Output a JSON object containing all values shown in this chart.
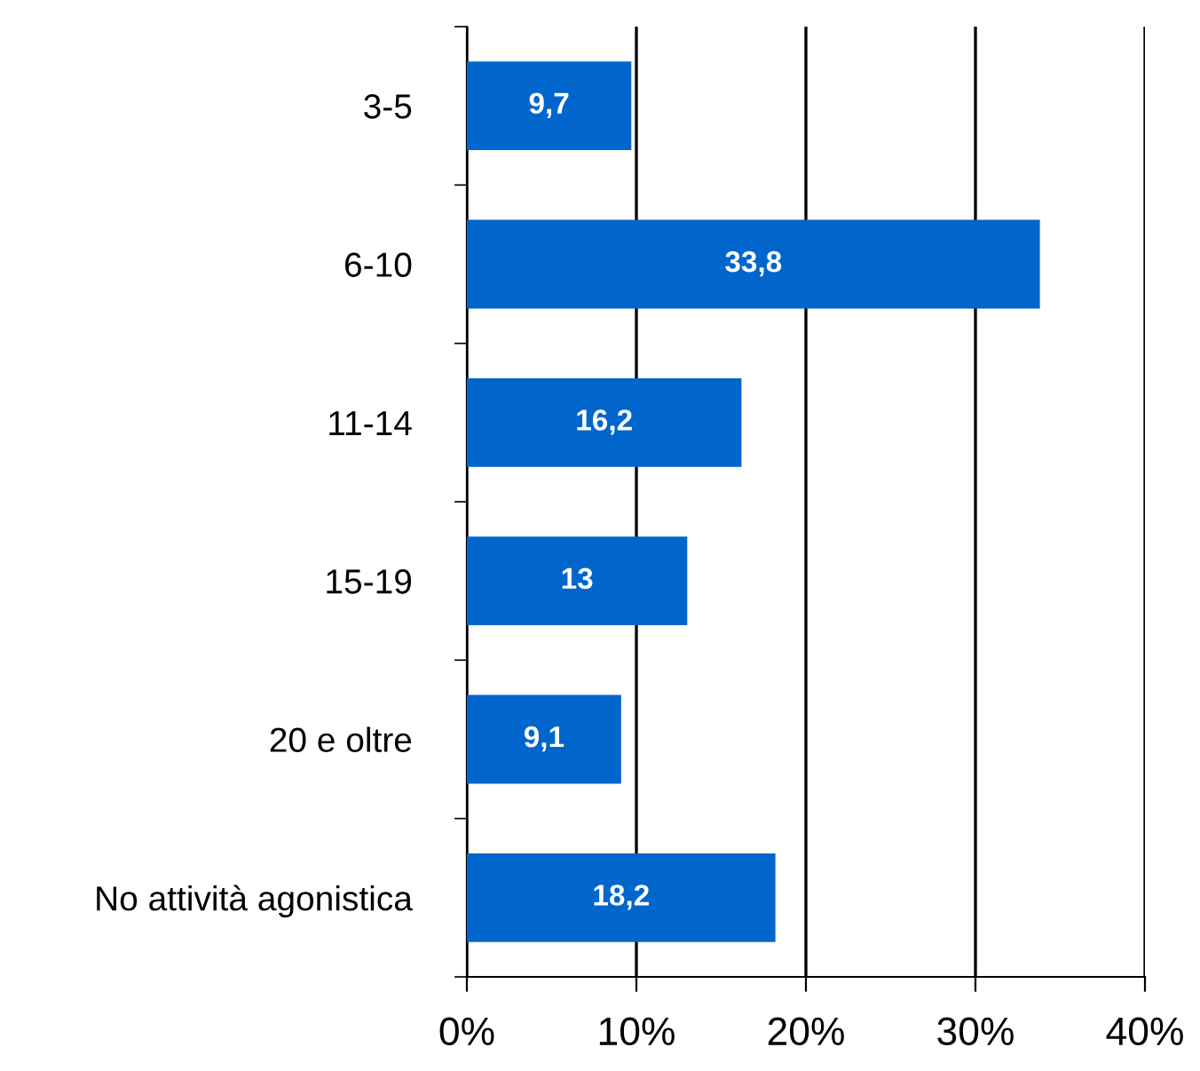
{
  "chart_data": {
    "type": "bar",
    "orientation": "horizontal",
    "categories": [
      "3-5",
      "6-10",
      "11-14",
      "15-19",
      "20 e oltre",
      "No attività agonistica"
    ],
    "values": [
      9.7,
      33.8,
      16.2,
      13,
      9.1,
      18.2
    ],
    "value_labels": [
      "9,7",
      "33,8",
      "16,2",
      "13",
      "9,1",
      "18,2"
    ],
    "color": "#0066cc",
    "xlim": [
      0,
      40
    ],
    "xticks": [
      {
        "value": 0,
        "label": "0%"
      },
      {
        "value": 10,
        "label": "10%"
      },
      {
        "value": 20,
        "label": "20%"
      },
      {
        "value": 30,
        "label": "30%"
      },
      {
        "value": 40,
        "label": "40%"
      }
    ],
    "grid": "x",
    "legend": false
  }
}
